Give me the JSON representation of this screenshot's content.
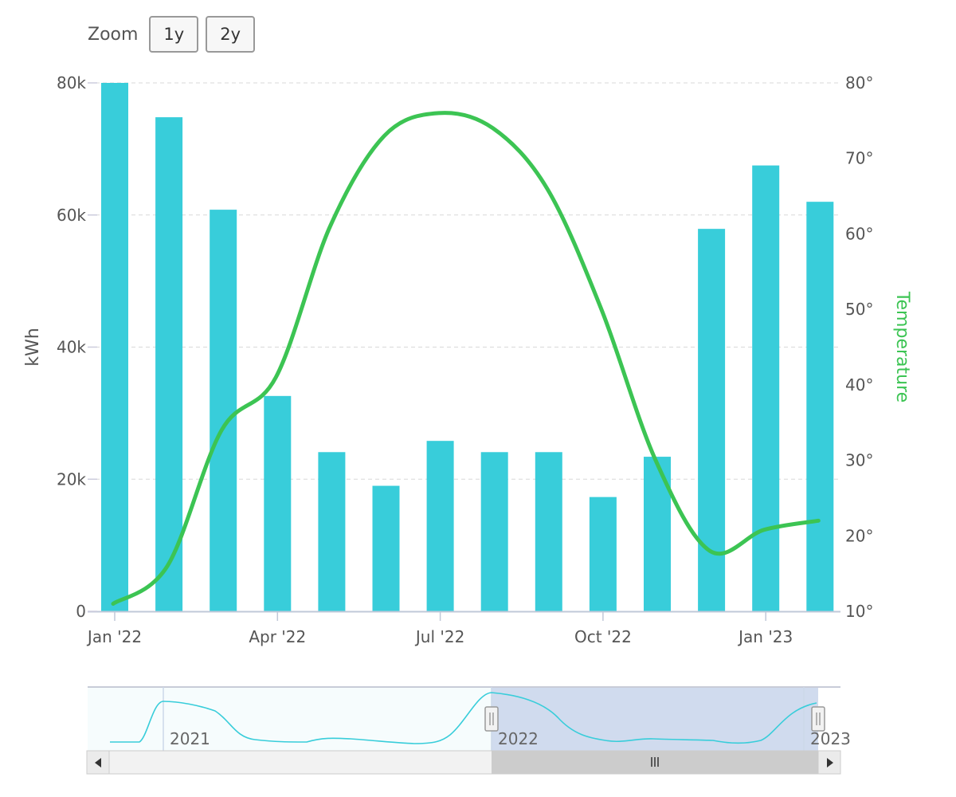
{
  "zoom": {
    "label": "Zoom",
    "buttons": [
      "1y",
      "2y"
    ]
  },
  "chart_data": {
    "type": "bar+line",
    "title": "",
    "categories": [
      "2022-01",
      "2022-02",
      "2022-03",
      "2022-04",
      "2022-05",
      "2022-06",
      "2022-07",
      "2022-08",
      "2022-09",
      "2022-10",
      "2022-11",
      "2022-12",
      "2023-01",
      "2023-02"
    ],
    "x_tick_labels": [
      "Jan '22",
      "Apr '22",
      "Jul '22",
      "Oct '22",
      "Jan '23"
    ],
    "series": [
      {
        "name": "",
        "type": "bar",
        "axis": "left",
        "color": "#38cdda",
        "values": [
          80000,
          74800,
          60800,
          32600,
          24100,
          19000,
          25800,
          24100,
          24100,
          17300,
          23400,
          57900,
          67500,
          62000
        ]
      },
      {
        "name": "",
        "type": "line",
        "axis": "right",
        "color": "#3cc453",
        "x": [
          "2022-01",
          "2022-02",
          "2022-03",
          "2022-04",
          "2022-05",
          "2022-06",
          "2022-07",
          "2022-08",
          "2022-09",
          "2022-10",
          "2022-11",
          "2022-12",
          "2023-01",
          "2023-02"
        ],
        "values": [
          11,
          16,
          34,
          41,
          61,
          73,
          76,
          74,
          66,
          50,
          30,
          18,
          20.8,
          22
        ]
      }
    ],
    "y_left": {
      "label": "kWh",
      "ylim": [
        0,
        80000
      ],
      "ticks": [
        "0",
        "20k",
        "40k",
        "60k",
        "80k"
      ]
    },
    "y_right": {
      "label": "Temperature",
      "ylim": [
        10,
        80
      ],
      "ticks": [
        "10°",
        "20°",
        "30°",
        "40°",
        "50°",
        "60°",
        "70°",
        "80°"
      ],
      "color": "#3cc453"
    },
    "grid": true,
    "navigator": {
      "labels": [
        "2021",
        "2022",
        "2023"
      ],
      "line_color": "#38cdda",
      "selected_range": [
        "2022-01",
        "2023-02"
      ]
    }
  }
}
